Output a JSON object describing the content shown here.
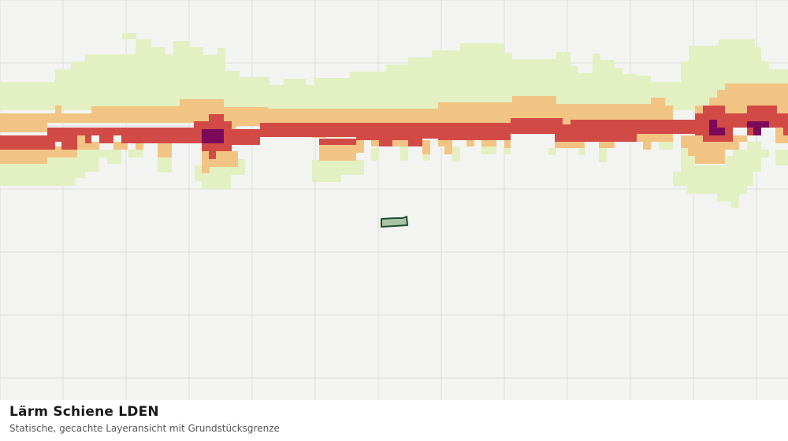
{
  "caption": {
    "title": "Lärm Schiene LDEN",
    "subtitle": "Statische, gecachte Layeransicht mit Grundstücksgrenze"
  },
  "colors": {
    "background": "#f3f4f2",
    "grid": "#dcdedb",
    "noise_low": "#e2f0c2",
    "noise_medium": "#f2c483",
    "noise_high": "#d24a45",
    "noise_very_high": "#7b0a5b",
    "parcel_fill": "#a9c4a6",
    "parcel_stroke": "#1f4d2d"
  },
  "layers": [
    {
      "name": "noise-band-low",
      "color": "noise_low"
    },
    {
      "name": "noise-band-medium",
      "color": "noise_medium"
    },
    {
      "name": "noise-band-high",
      "color": "noise_high"
    },
    {
      "name": "noise-band-very-high",
      "color": "noise_very_high"
    },
    {
      "name": "parcel-boundary",
      "color": "parcel_fill"
    }
  ]
}
